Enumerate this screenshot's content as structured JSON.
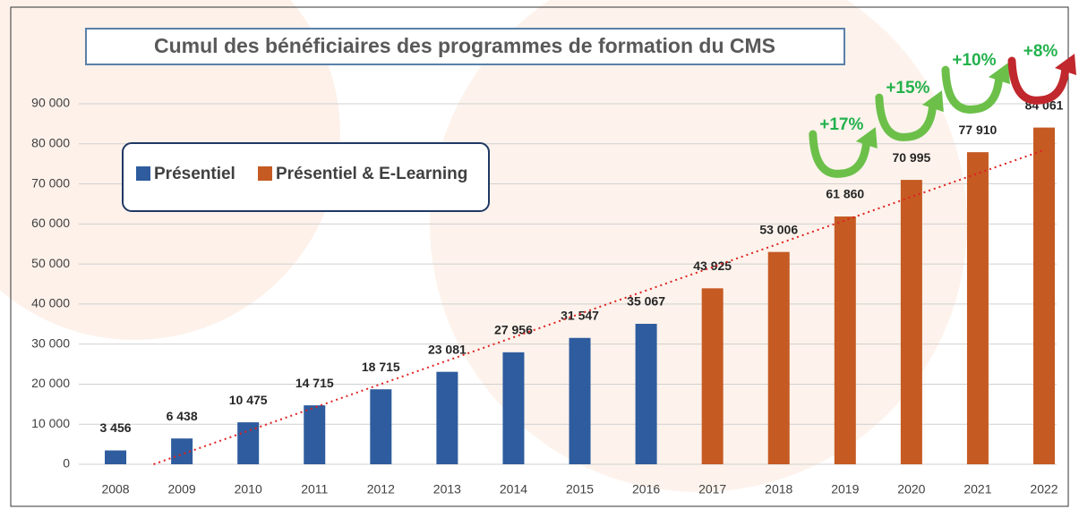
{
  "chart_data": {
    "type": "bar",
    "title": "Cumul des bénéficiaires des programmes de formation du CMS",
    "categories": [
      "2008",
      "2009",
      "2010",
      "2011",
      "2012",
      "2013",
      "2014",
      "2015",
      "2016",
      "2017",
      "2018",
      "2019",
      "2020",
      "2021",
      "2022"
    ],
    "series": [
      {
        "name": "Présentiel",
        "color": "#2e5c9e",
        "values": [
          3456,
          6438,
          10475,
          14715,
          18715,
          23081,
          27956,
          31547,
          35067,
          null,
          null,
          null,
          null,
          null,
          null
        ],
        "value_labels": [
          "3 456",
          "6 438",
          "10 475",
          "14 715",
          "18 715",
          "23 081",
          "27 956",
          "31 547",
          "35 067",
          null,
          null,
          null,
          null,
          null,
          null
        ]
      },
      {
        "name": "Présentiel & E-Learning",
        "color": "#c55a23",
        "values": [
          null,
          null,
          null,
          null,
          null,
          null,
          null,
          null,
          null,
          43925,
          53006,
          61860,
          70995,
          77910,
          84061
        ],
        "value_labels": [
          null,
          null,
          null,
          null,
          null,
          null,
          null,
          null,
          null,
          "43 925",
          "53 006",
          "61 860",
          "70 995",
          "77 910",
          "84 061"
        ]
      }
    ],
    "ylim": [
      0,
      90000
    ],
    "yticks": [
      {
        "value": 0,
        "label": "0"
      },
      {
        "value": 10000,
        "label": "10 000"
      },
      {
        "value": 20000,
        "label": "20 000"
      },
      {
        "value": 30000,
        "label": "30 000"
      },
      {
        "value": 40000,
        "label": "40 000"
      },
      {
        "value": 50000,
        "label": "50 000"
      },
      {
        "value": 60000,
        "label": "60 000"
      },
      {
        "value": 70000,
        "label": "70 000"
      },
      {
        "value": 80000,
        "label": "80 000"
      },
      {
        "value": 90000,
        "label": "90 000"
      }
    ],
    "grid": true,
    "legend": "upper left",
    "trendline": true,
    "trendline_color": "#e02020",
    "annotations": [
      {
        "text": "+17%",
        "color": "#22b14c",
        "arrow_color": "#6cc04a"
      },
      {
        "text": "+15%",
        "color": "#22b14c",
        "arrow_color": "#6cc04a"
      },
      {
        "text": "+10%",
        "color": "#22b14c",
        "arrow_color": "#6cc04a"
      },
      {
        "text": "+8%",
        "color": "#22b14c",
        "arrow_color": "#c0282d"
      }
    ]
  }
}
